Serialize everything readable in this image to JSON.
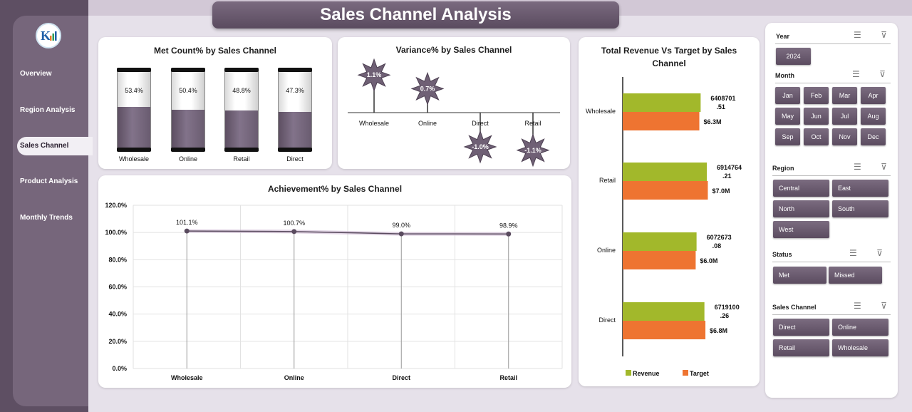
{
  "title": "Sales Channel Analysis",
  "nav": {
    "overview": "Overview",
    "region": "Region Analysis",
    "channel": "Sales Channel",
    "product": "Product Analysis",
    "trends": "Monthly Trends"
  },
  "colors": {
    "accent": "#6f6075",
    "revenue": "#a2b82b",
    "target": "#ee7431"
  },
  "met_count": {
    "title": "Met Count% by Sales Channel",
    "chart_data": {
      "type": "bar",
      "categories": [
        "Wholesale",
        "Online",
        "Retail",
        "Direct"
      ],
      "values": [
        53.4,
        50.4,
        48.8,
        47.3
      ],
      "labels": [
        "53.4%",
        "50.4%",
        "48.8%",
        "47.3%"
      ],
      "ylim": [
        0,
        100
      ]
    }
  },
  "variance": {
    "title": "Variance% by Sales Channel",
    "chart_data": {
      "type": "bar",
      "categories": [
        "Wholesale",
        "Online",
        "Direct",
        "Retail"
      ],
      "values": [
        1.1,
        0.7,
        -1.0,
        -1.1
      ],
      "labels": [
        "1.1%",
        "0.7%",
        "-1.0%",
        "-1.1%"
      ]
    }
  },
  "revenue_target": {
    "title": "Total Revenue Vs Target by Sales Channel",
    "chart_data": {
      "type": "bar",
      "orientation": "horizontal",
      "categories": [
        "Wholesale",
        "Retail",
        "Online",
        "Direct"
      ],
      "series": [
        {
          "name": "Revenue",
          "values": [
            6408701.51,
            6914764.21,
            6072673.08,
            6719100.26
          ],
          "labels": [
            "6408701.51",
            "6914764.21",
            "6072673.08",
            "6719100.26"
          ]
        },
        {
          "name": "Target",
          "values": [
            6300000,
            7000000,
            6000000,
            6800000
          ],
          "labels": [
            "$6.3M",
            "$7.0M",
            "$6.0M",
            "$6.8M"
          ]
        }
      ],
      "legend": "bottom"
    }
  },
  "achievement": {
    "title": "Achievement% by Sales Channel",
    "chart_data": {
      "type": "line",
      "categories": [
        "Wholesale",
        "Online",
        "Direct",
        "Retail"
      ],
      "values": [
        101.1,
        100.7,
        99.0,
        98.9
      ],
      "labels": [
        "101.1%",
        "100.7%",
        "99.0%",
        "98.9%"
      ],
      "yticks": [
        "0.0%",
        "20.0%",
        "40.0%",
        "60.0%",
        "80.0%",
        "100.0%",
        "120.0%"
      ],
      "ylim": [
        0,
        120
      ],
      "grid": true
    }
  },
  "slicers": {
    "year": {
      "title": "Year",
      "items": [
        "2024"
      ]
    },
    "month": {
      "title": "Month",
      "items": [
        "Jan",
        "Feb",
        "Mar",
        "Apr",
        "May",
        "Jun",
        "Jul",
        "Aug",
        "Sep",
        "Oct",
        "Nov",
        "Dec"
      ]
    },
    "region": {
      "title": "Region",
      "items": [
        "Central",
        "East",
        "North",
        "South",
        "West"
      ]
    },
    "status": {
      "title": "Status",
      "items": [
        "Met",
        "Missed"
      ]
    },
    "channel": {
      "title": "Sales Channel",
      "items": [
        "Direct",
        "Online",
        "Retail",
        "Wholesale"
      ]
    }
  }
}
